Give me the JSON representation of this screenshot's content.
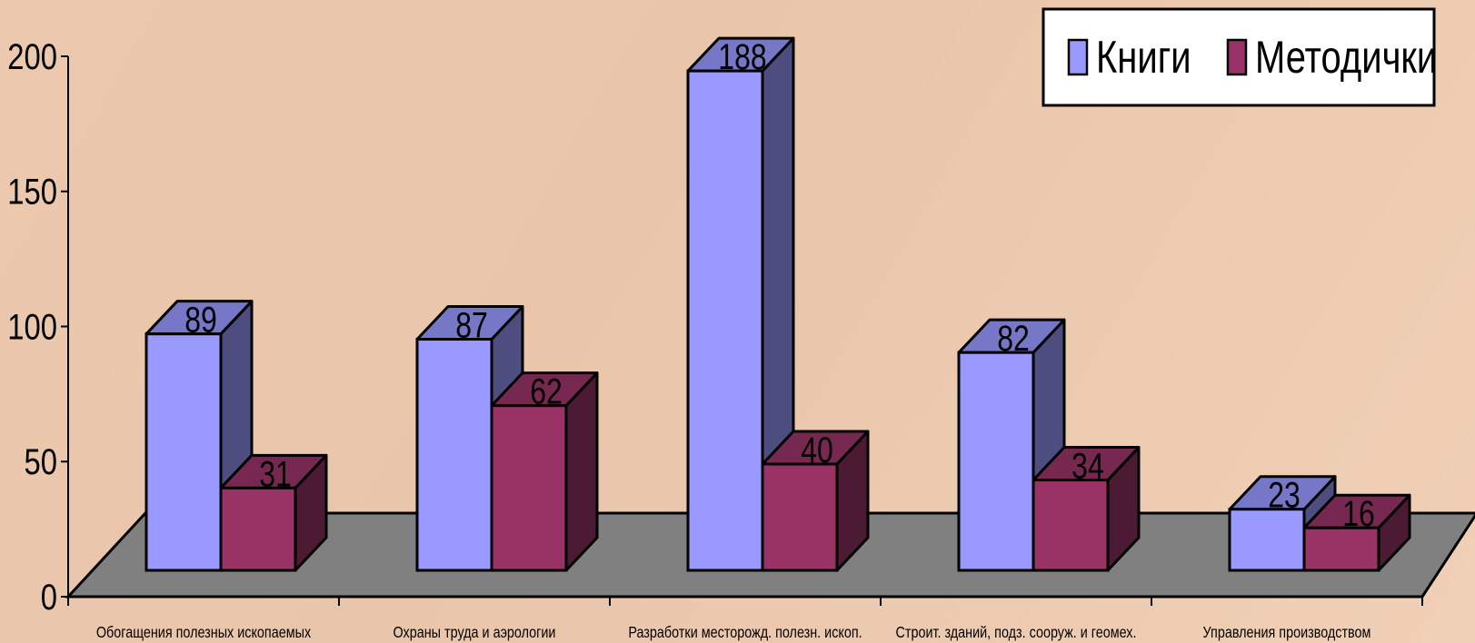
{
  "chart_data": {
    "type": "bar",
    "subtype": "3d-clustered-column",
    "categories": [
      "Обогащения полезных ископаемых",
      "Охраны труда и аэрологии",
      "Разработки месторожд. полезн. ископ.",
      "Строит. зданий, подз. сооруж. и геомех.",
      "Управления производством"
    ],
    "series": [
      {
        "name": "Книги",
        "values": [
          89,
          87,
          188,
          82,
          23
        ],
        "color": "#9999ff"
      },
      {
        "name": "Методички",
        "values": [
          31,
          62,
          40,
          34,
          16
        ],
        "color": "#993366"
      }
    ],
    "y_ticks": [
      "0",
      "50",
      "100",
      "150",
      "200"
    ],
    "ylim": [
      0,
      200
    ],
    "legend_position": "top-right",
    "floor_color": "#808080",
    "grid": false
  }
}
